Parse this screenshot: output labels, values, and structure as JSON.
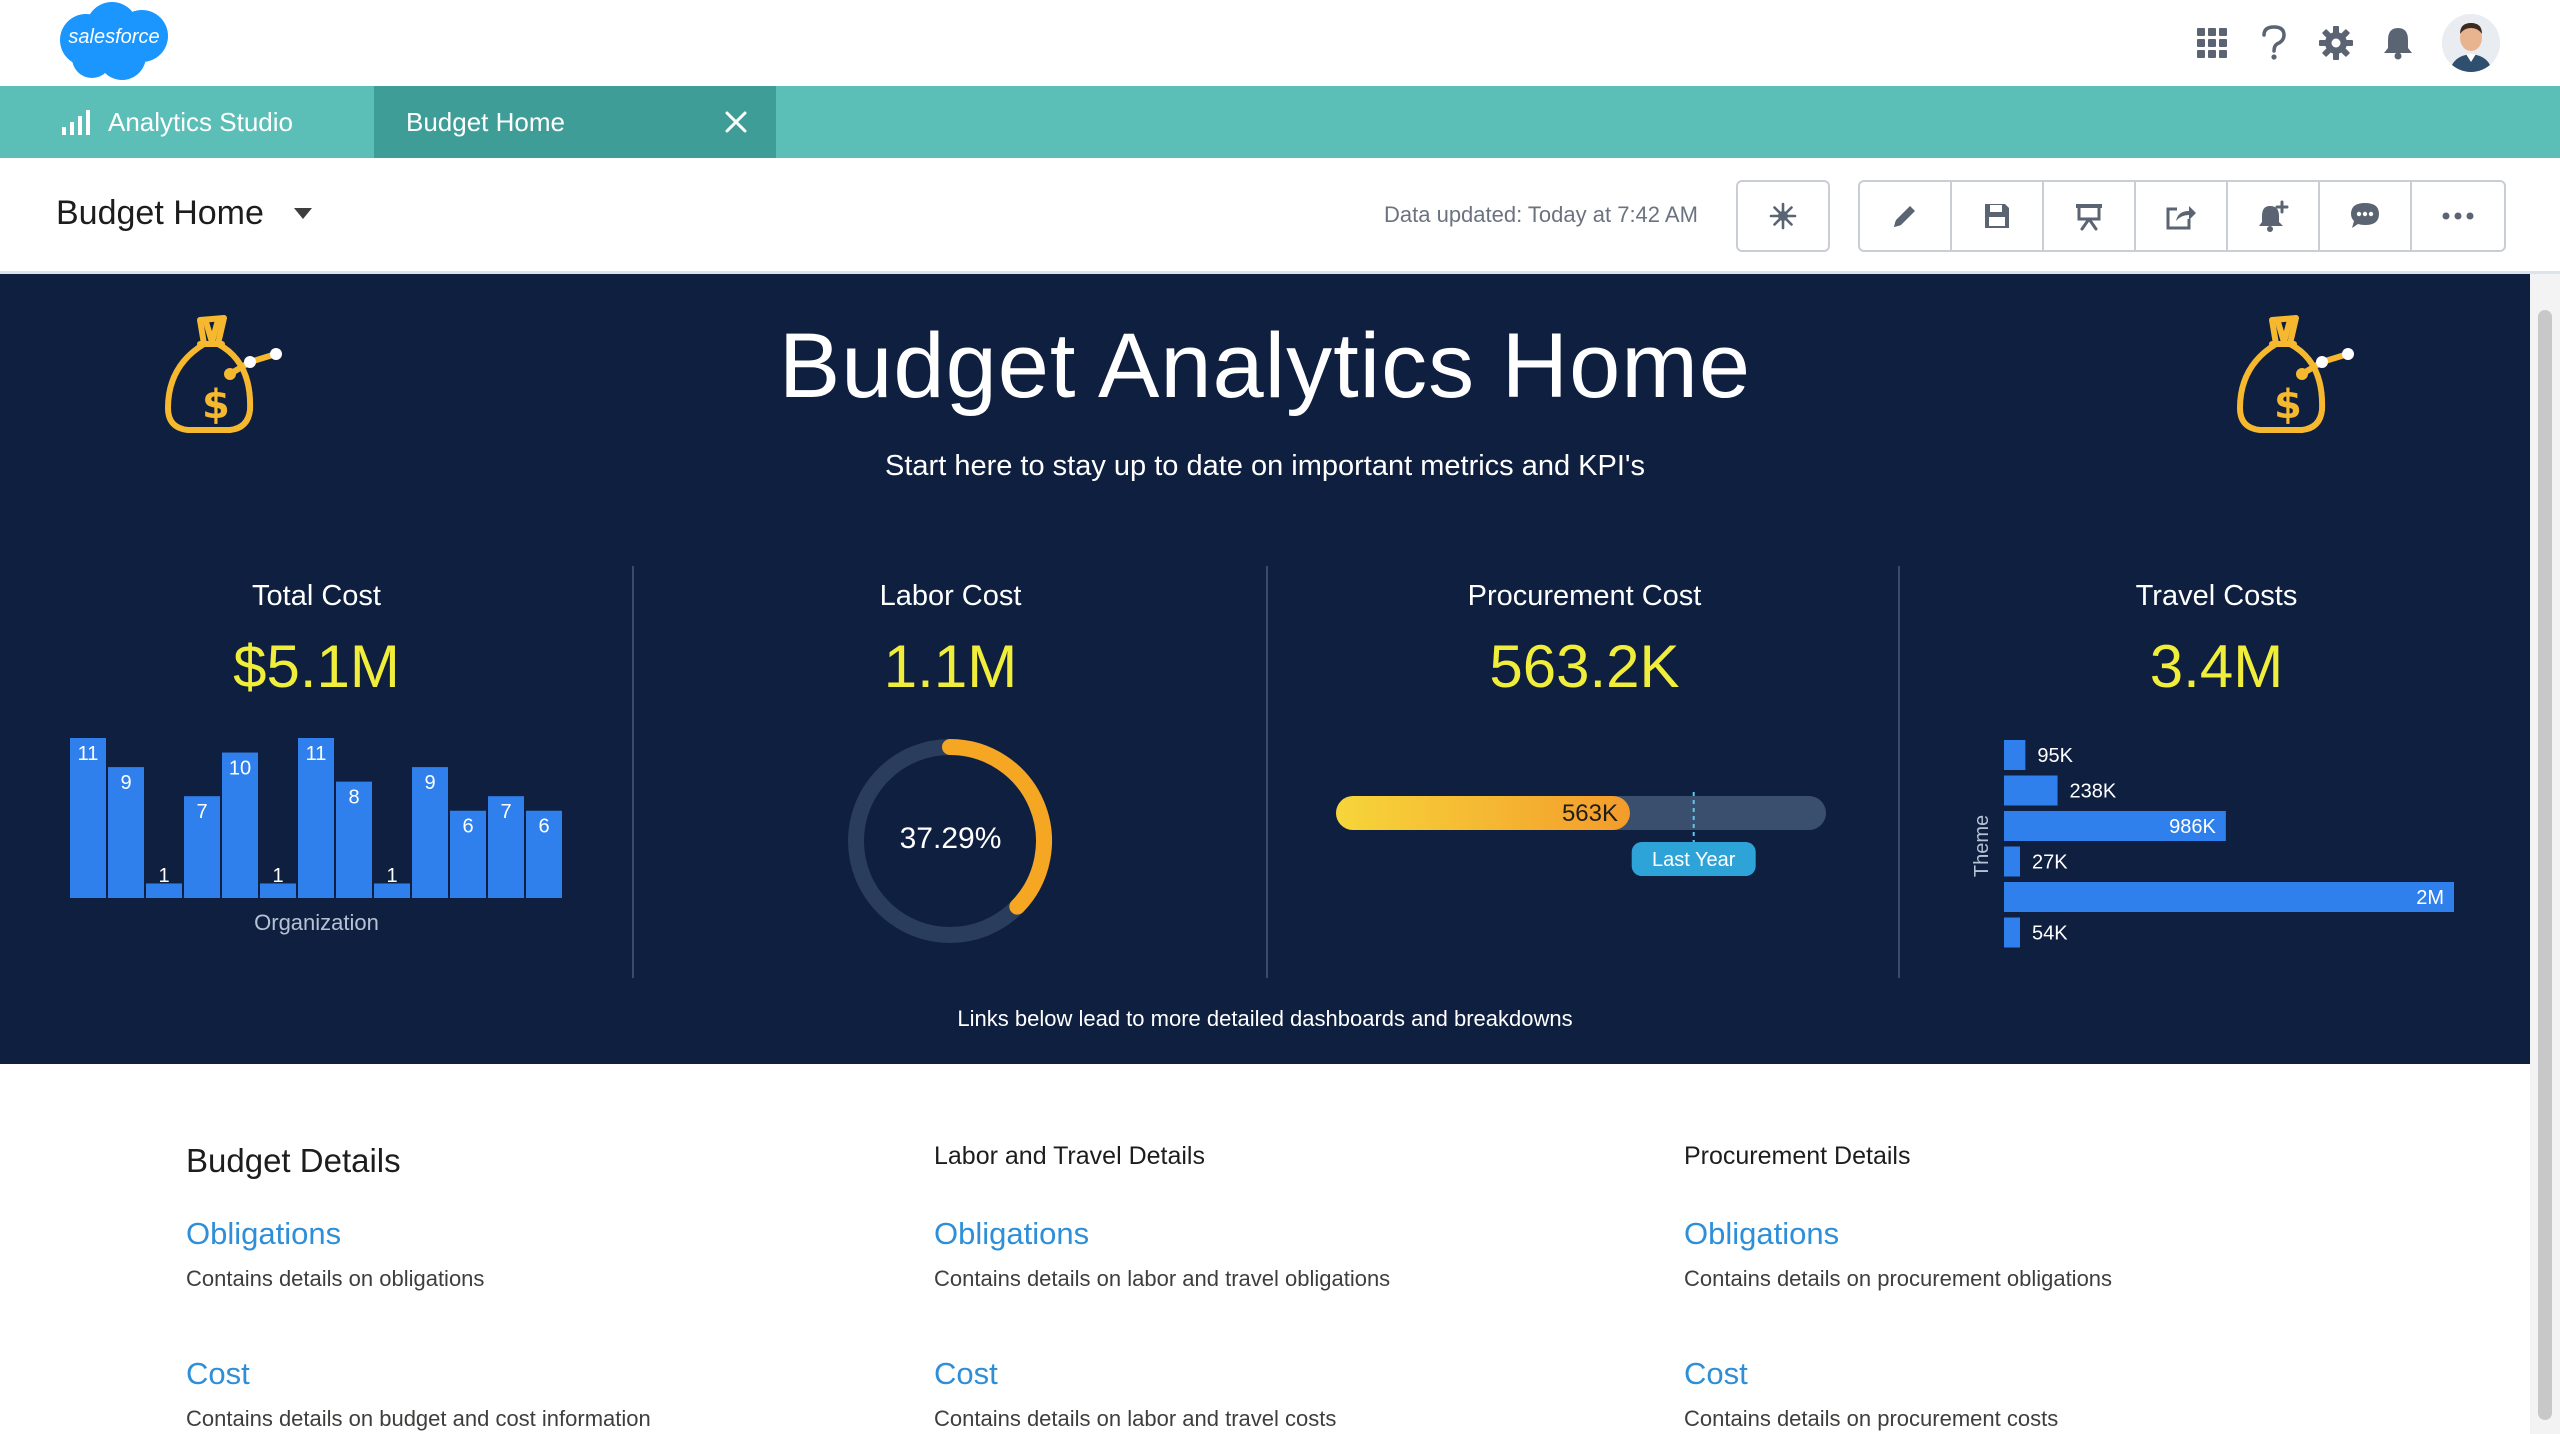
{
  "header": {
    "logo_text": "salesforce",
    "icons": [
      "app-launcher-icon",
      "help-icon",
      "gear-icon",
      "bell-icon"
    ]
  },
  "tabs": {
    "app_name": "Analytics Studio",
    "active_tab": "Budget Home"
  },
  "toolbar": {
    "title": "Budget Home",
    "data_updated": "Data updated: Today at 7:42 AM"
  },
  "hero": {
    "title": "Budget Analytics Home",
    "subtitle": "Start here to stay up to date on important metrics and KPI's",
    "footer": "Links below lead to more detailed dashboards and breakdowns"
  },
  "kpis": [
    {
      "label": "Total Cost",
      "value": "$5.1M"
    },
    {
      "label": "Labor Cost",
      "value": "1.1M"
    },
    {
      "label": "Procurement Cost",
      "value": "563.2K"
    },
    {
      "label": "Travel Costs",
      "value": "3.4M"
    }
  ],
  "chart_data": [
    {
      "type": "bar",
      "xlabel": "Organization",
      "values": [
        11,
        9,
        1,
        7,
        10,
        1,
        11,
        8,
        1,
        9,
        6,
        7,
        6
      ],
      "value_labels": [
        "11",
        "9",
        "1",
        "7",
        "10",
        "1",
        "11",
        "8",
        "1",
        "9",
        "6",
        "7",
        "6"
      ],
      "ylim": [
        0,
        11
      ],
      "color": "#2f80ed"
    },
    {
      "type": "gauge",
      "value_pct": 37.29,
      "label": "37.29%",
      "color": "#f5a623",
      "track_color": "#2b3d5c"
    },
    {
      "type": "bullet",
      "value": 563,
      "value_label": "563K",
      "target_fraction": 0.73,
      "target_label": "Last Year",
      "max_fraction_filled": 0.6
    },
    {
      "type": "bar",
      "orientation": "horizontal",
      "ylabel": "Theme",
      "values": [
        95,
        238,
        986,
        27,
        2000,
        54
      ],
      "value_labels": [
        "95K",
        "238K",
        "986K",
        "27K",
        "2M",
        "54K"
      ],
      "xlim": [
        0,
        2000
      ],
      "color": "#2f80ed"
    }
  ],
  "details": {
    "columns": [
      {
        "heading": "Budget Details",
        "links": [
          {
            "label": "Obligations",
            "desc": "Contains details on obligations"
          },
          {
            "label": "Cost",
            "desc": "Contains details on budget and cost information"
          }
        ]
      },
      {
        "heading": "Labor and Travel Details",
        "links": [
          {
            "label": "Obligations",
            "desc": "Contains details on labor and travel obligations"
          },
          {
            "label": "Cost",
            "desc": "Contains details on labor and travel costs"
          }
        ]
      },
      {
        "heading": "Procurement Details",
        "links": [
          {
            "label": "Obligations",
            "desc": "Contains details on procurement obligations"
          },
          {
            "label": "Cost",
            "desc": "Contains details on procurement costs"
          }
        ]
      }
    ]
  },
  "colors": {
    "brand_teal": "#5bbfb7",
    "active_tab": "#3e9d96",
    "hero_bg": "#0f1f3f",
    "kpi_value": "#f0ee3a",
    "link": "#2e8fd8",
    "logo_blue": "#1b96ff"
  }
}
